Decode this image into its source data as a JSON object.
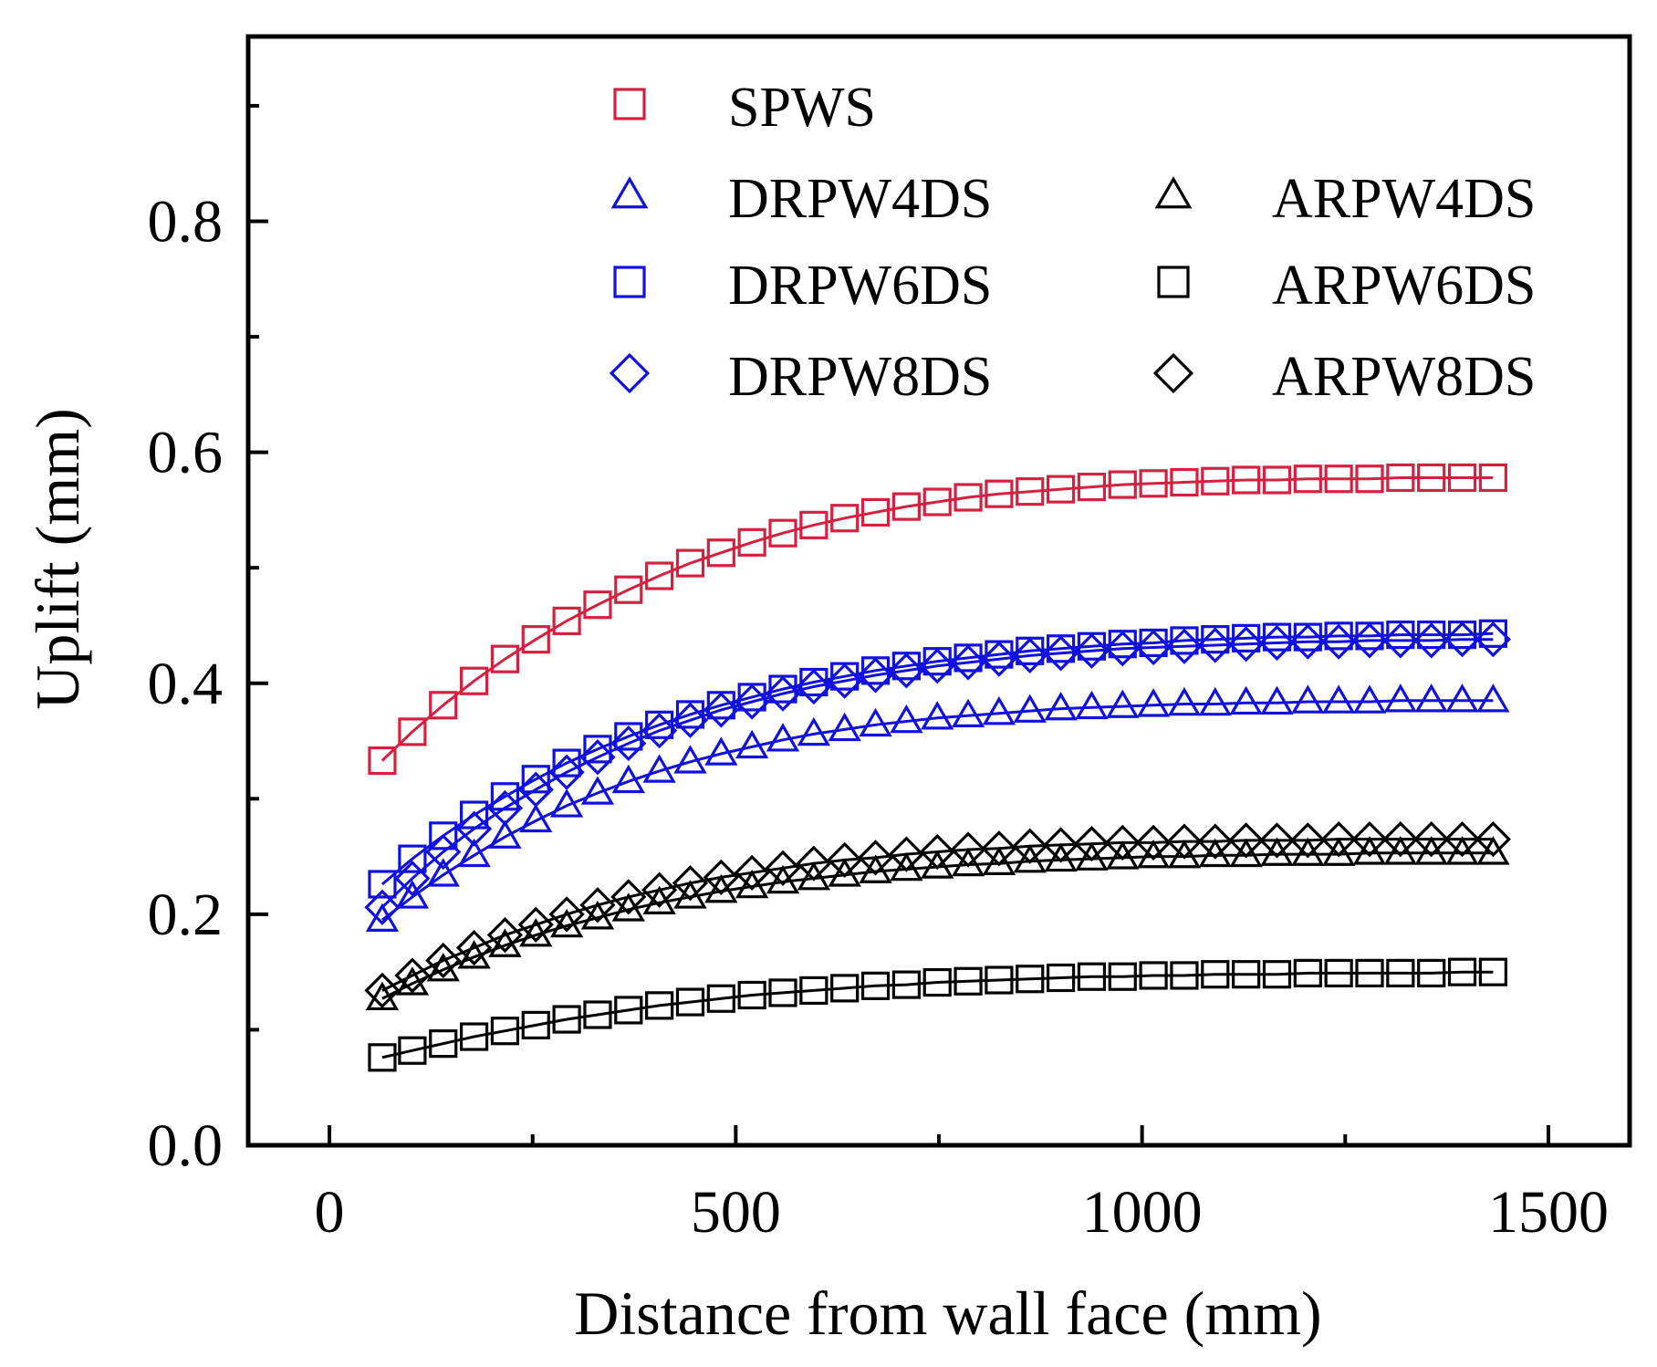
{
  "chart_data": {
    "type": "scatter",
    "title": "",
    "xlabel": "Distance from wall face (mm)",
    "ylabel": "Uplift (mm)",
    "xlim": [
      -100,
      1600
    ],
    "ylim": [
      0,
      0.96
    ],
    "x_ticks": [
      0,
      500,
      1000,
      1500
    ],
    "x_tick_labels": [
      "0",
      "500",
      "1000",
      "1500"
    ],
    "y_ticks": [
      0.0,
      0.2,
      0.4,
      0.6,
      0.8
    ],
    "y_tick_labels": [
      "0.0",
      "0.2",
      "0.4",
      "0.6",
      "0.8"
    ],
    "grid": false,
    "legend_position": "top-right",
    "x": [
      65,
      102,
      140,
      178,
      216,
      254,
      292,
      330,
      368,
      406,
      444,
      482,
      520,
      558,
      596,
      634,
      672,
      710,
      748,
      786,
      824,
      862,
      900,
      938,
      976,
      1014,
      1052,
      1090,
      1128,
      1166,
      1204,
      1242,
      1280,
      1318,
      1356,
      1394,
      1432
    ],
    "series": [
      {
        "name": "SPWS",
        "marker": "square",
        "color": "#d62040",
        "values": [
          0.333,
          0.358,
          0.381,
          0.402,
          0.421,
          0.438,
          0.454,
          0.468,
          0.481,
          0.493,
          0.504,
          0.513,
          0.522,
          0.53,
          0.537,
          0.543,
          0.548,
          0.553,
          0.557,
          0.561,
          0.564,
          0.566,
          0.568,
          0.57,
          0.572,
          0.573,
          0.574,
          0.575,
          0.576,
          0.576,
          0.577,
          0.577,
          0.577,
          0.578,
          0.578,
          0.578,
          0.578
        ]
      },
      {
        "name": "DRPW4DS",
        "marker": "triangle",
        "color": "#1010e0",
        "values": [
          0.195,
          0.215,
          0.234,
          0.251,
          0.267,
          0.281,
          0.294,
          0.305,
          0.315,
          0.324,
          0.332,
          0.339,
          0.345,
          0.351,
          0.356,
          0.36,
          0.364,
          0.367,
          0.37,
          0.372,
          0.374,
          0.376,
          0.378,
          0.379,
          0.38,
          0.381,
          0.382,
          0.382,
          0.383,
          0.383,
          0.384,
          0.384,
          0.384,
          0.385,
          0.385,
          0.385,
          0.385
        ]
      },
      {
        "name": "DRPW6DS",
        "marker": "square",
        "color": "#1010e0",
        "values": [
          0.226,
          0.248,
          0.268,
          0.286,
          0.302,
          0.317,
          0.331,
          0.343,
          0.354,
          0.364,
          0.373,
          0.381,
          0.388,
          0.395,
          0.401,
          0.406,
          0.411,
          0.415,
          0.419,
          0.422,
          0.425,
          0.428,
          0.43,
          0.432,
          0.434,
          0.435,
          0.437,
          0.438,
          0.439,
          0.44,
          0.44,
          0.441,
          0.441,
          0.442,
          0.442,
          0.442,
          0.443
        ]
      },
      {
        "name": "DRPW8DS",
        "marker": "diamond",
        "color": "#1010e0",
        "values": [
          0.206,
          0.231,
          0.254,
          0.274,
          0.292,
          0.308,
          0.323,
          0.336,
          0.348,
          0.359,
          0.368,
          0.377,
          0.384,
          0.391,
          0.397,
          0.402,
          0.407,
          0.411,
          0.415,
          0.418,
          0.421,
          0.424,
          0.426,
          0.428,
          0.43,
          0.431,
          0.432,
          0.433,
          0.434,
          0.435,
          0.436,
          0.436,
          0.437,
          0.437,
          0.437,
          0.438,
          0.438
        ]
      },
      {
        "name": "ARPW4DS",
        "marker": "triangle",
        "color": "#000000",
        "values": [
          0.127,
          0.14,
          0.152,
          0.163,
          0.173,
          0.182,
          0.19,
          0.197,
          0.204,
          0.21,
          0.215,
          0.22,
          0.224,
          0.228,
          0.231,
          0.234,
          0.237,
          0.239,
          0.241,
          0.243,
          0.244,
          0.246,
          0.247,
          0.248,
          0.249,
          0.25,
          0.25,
          0.251,
          0.251,
          0.252,
          0.252,
          0.252,
          0.253,
          0.253,
          0.253,
          0.253,
          0.253
        ]
      },
      {
        "name": "ARPW6DS",
        "marker": "square",
        "color": "#000000",
        "values": [
          0.076,
          0.082,
          0.088,
          0.094,
          0.099,
          0.104,
          0.109,
          0.113,
          0.117,
          0.121,
          0.124,
          0.127,
          0.13,
          0.132,
          0.134,
          0.136,
          0.138,
          0.139,
          0.141,
          0.142,
          0.143,
          0.144,
          0.145,
          0.146,
          0.146,
          0.147,
          0.147,
          0.148,
          0.148,
          0.148,
          0.149,
          0.149,
          0.149,
          0.149,
          0.149,
          0.15,
          0.15
        ]
      },
      {
        "name": "ARPW8DS",
        "marker": "diamond",
        "color": "#000000",
        "values": [
          0.134,
          0.147,
          0.16,
          0.171,
          0.182,
          0.191,
          0.2,
          0.208,
          0.215,
          0.221,
          0.227,
          0.232,
          0.236,
          0.24,
          0.244,
          0.247,
          0.249,
          0.252,
          0.254,
          0.256,
          0.257,
          0.259,
          0.26,
          0.261,
          0.262,
          0.262,
          0.263,
          0.263,
          0.264,
          0.264,
          0.264,
          0.265,
          0.265,
          0.265,
          0.265,
          0.265,
          0.265
        ]
      }
    ]
  }
}
